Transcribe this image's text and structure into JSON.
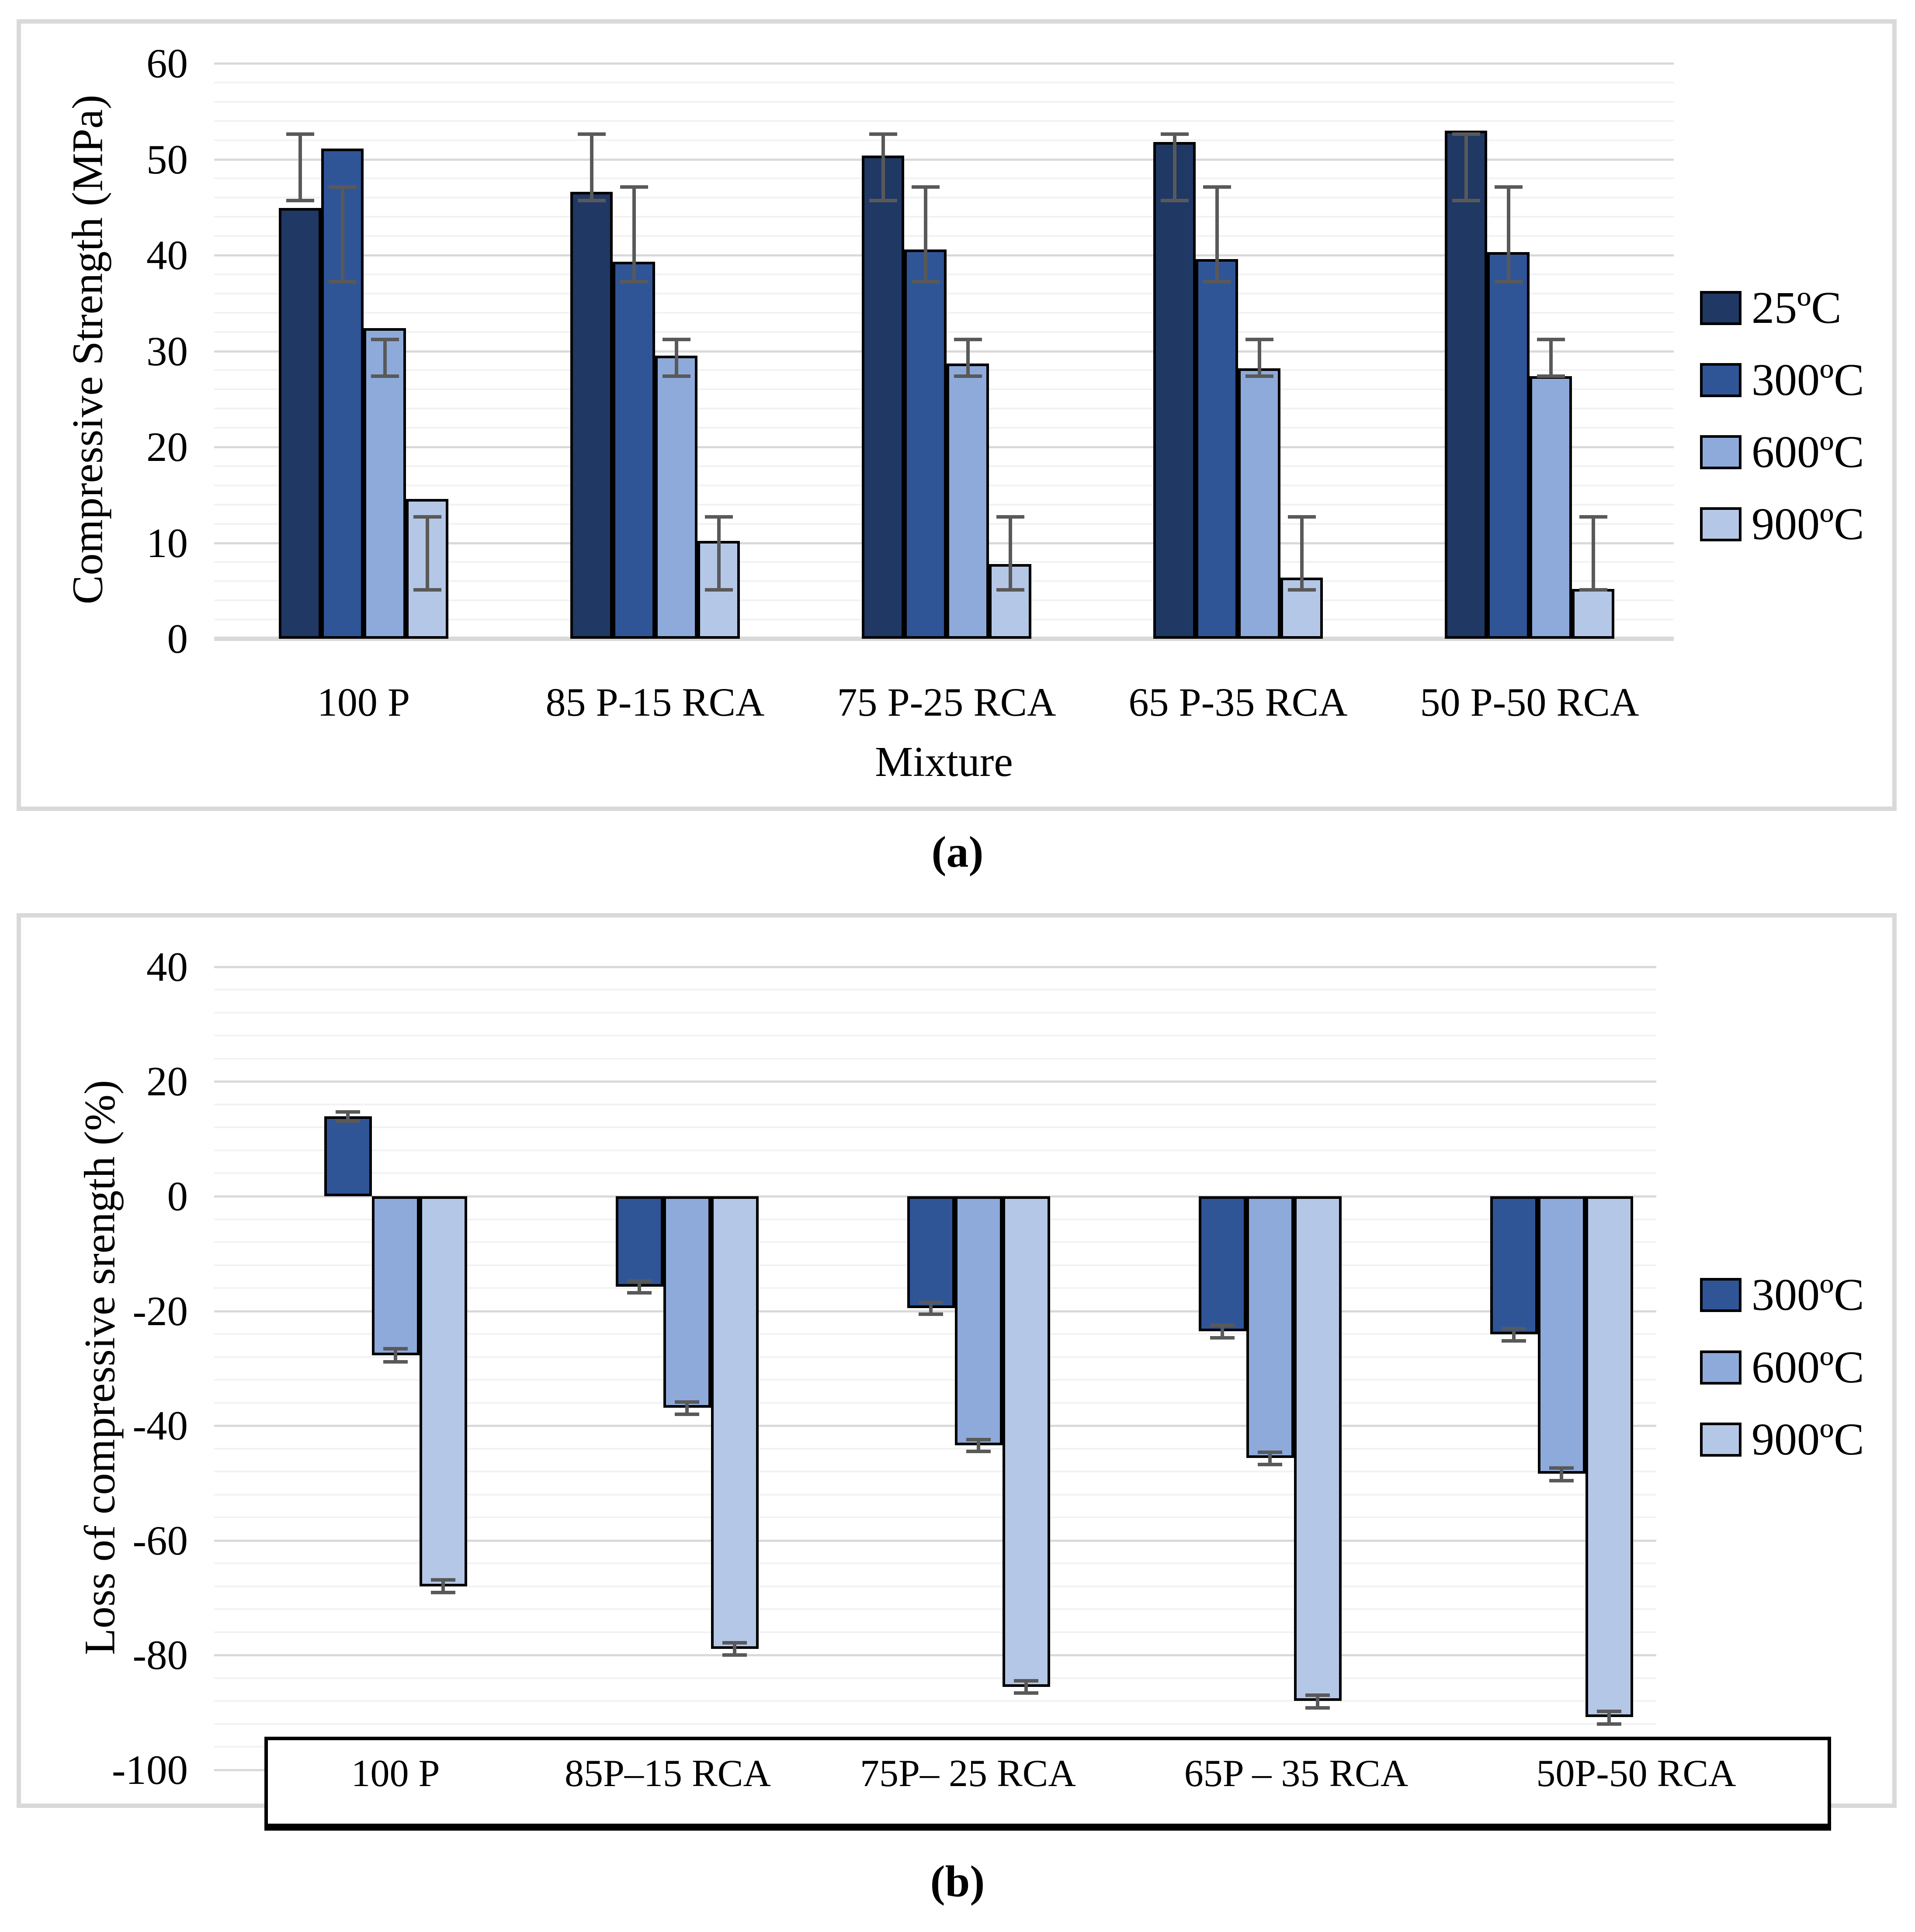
{
  "figure": {
    "caption_a": "(a)",
    "caption_b": "(b)"
  },
  "chart_data": [
    {
      "id": "a",
      "type": "bar",
      "title": "",
      "ylabel": "Compressive Strength (MPa)",
      "xlabel": "Mixture",
      "ylim": [
        0,
        60
      ],
      "ytick_step": 10,
      "minor_grid_step": 2,
      "grid": true,
      "legend_position": "right",
      "categories": [
        "100 P",
        "85 P-15 RCA",
        "75 P-25 RCA",
        "65 P-35 RCA",
        "50 P-50 RCA"
      ],
      "series": [
        {
          "name": "25ºC",
          "color": "#203864",
          "values": [
            44.9,
            46.6,
            50.4,
            51.8,
            53.0
          ],
          "error_low": [
            45.7,
            45.7,
            45.7,
            45.7,
            45.7
          ],
          "error_high": [
            52.6,
            52.6,
            52.6,
            52.6,
            52.6
          ]
        },
        {
          "name": "300ºC",
          "color": "#2F5597",
          "values": [
            51.1,
            39.3,
            40.6,
            39.6,
            40.3
          ],
          "error_low": [
            37.2,
            37.2,
            37.2,
            37.2,
            37.2
          ],
          "error_high": [
            47.1,
            47.1,
            47.1,
            47.1,
            47.1
          ]
        },
        {
          "name": "600ºC",
          "color": "#8EAADB",
          "values": [
            32.4,
            29.5,
            28.7,
            28.2,
            27.4
          ],
          "error_low": [
            27.4,
            27.4,
            27.4,
            27.4,
            27.4
          ],
          "error_high": [
            31.2,
            31.2,
            31.2,
            31.2,
            31.2
          ]
        },
        {
          "name": "900ºC",
          "color": "#B4C7E7",
          "values": [
            14.6,
            10.2,
            7.8,
            6.4,
            5.2
          ],
          "error_low": [
            5.1,
            5.1,
            5.1,
            5.1,
            5.1
          ],
          "error_high": [
            12.7,
            12.7,
            12.7,
            12.7,
            12.7
          ]
        }
      ]
    },
    {
      "id": "b",
      "type": "bar",
      "title": "",
      "ylabel": "Loss of compressive srength (%)",
      "xlabel": "",
      "ylim": [
        -100,
        40
      ],
      "ytick_step": 20,
      "minor_grid_step": 4,
      "grid": true,
      "legend_position": "right",
      "categories": [
        "100 P",
        "85P–15 RCA",
        "75P– 25 RCA",
        "65P – 35 RCA",
        "50P-50 RCA"
      ],
      "series": [
        {
          "name": "300ºC",
          "color": "#2F5597",
          "values": [
            13.9,
            -15.8,
            -19.5,
            -23.5,
            -24.1
          ],
          "error_low": [
            13.1,
            -16.8,
            -20.6,
            -24.7,
            -25.2
          ],
          "error_high": [
            14.7,
            -14.8,
            -18.5,
            -22.5,
            -23.1
          ]
        },
        {
          "name": "600ºC",
          "color": "#8EAADB",
          "values": [
            -27.7,
            -36.9,
            -43.4,
            -45.6,
            -48.4
          ],
          "error_low": [
            -28.9,
            -38.0,
            -44.5,
            -46.8,
            -49.6
          ],
          "error_high": [
            -26.6,
            -35.9,
            -42.4,
            -44.6,
            -47.4
          ]
        },
        {
          "name": "900ºC",
          "color": "#B4C7E7",
          "values": [
            -68.0,
            -78.9,
            -85.5,
            -88.0,
            -90.8
          ],
          "error_low": [
            -69.1,
            -80.0,
            -86.6,
            -89.2,
            -92.0
          ],
          "error_high": [
            -66.9,
            -77.8,
            -84.5,
            -87.0,
            -89.8
          ]
        }
      ]
    }
  ]
}
